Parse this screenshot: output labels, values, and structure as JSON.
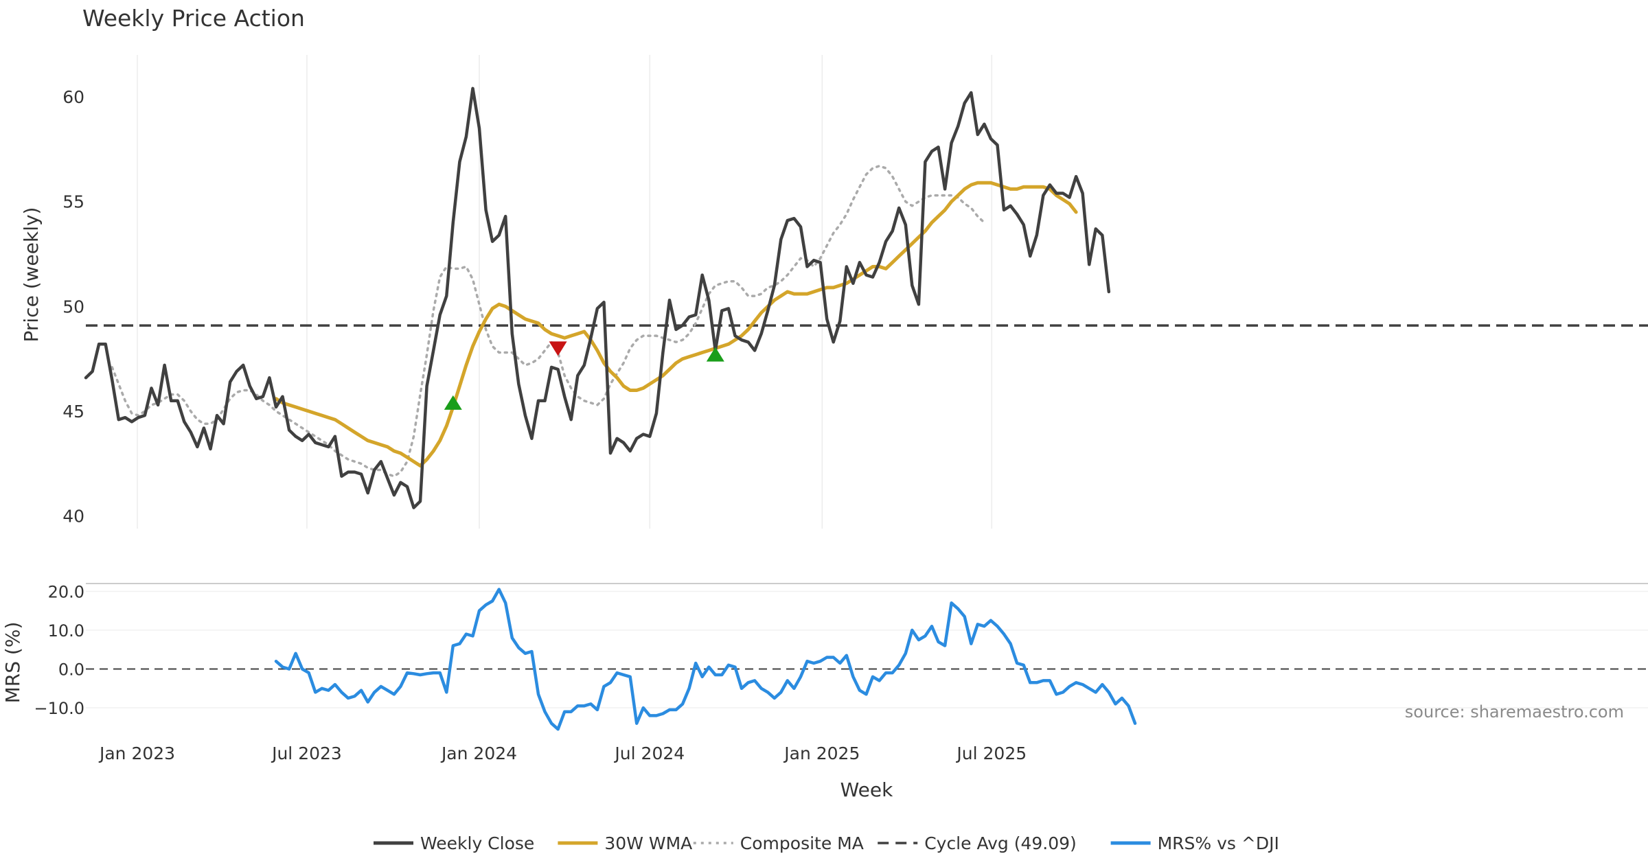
{
  "chart_data": [
    {
      "type": "line",
      "title": "Weekly Price Action",
      "xlabel": "",
      "ylabel": "Price (weekly)",
      "ylim": [
        39.4,
        62
      ],
      "yticks": [
        40,
        45,
        50,
        55,
        60
      ],
      "x_start": "2022-11-07",
      "x_step_days": 7,
      "xticks": [
        {
          "date": "2023-01-01",
          "label": "Jan 2023"
        },
        {
          "date": "2023-07-01",
          "label": "Jul 2023"
        },
        {
          "date": "2024-01-01",
          "label": "Jan 2024"
        },
        {
          "date": "2024-07-01",
          "label": "Jul 2024"
        },
        {
          "date": "2025-01-01",
          "label": "Jan 2025"
        },
        {
          "date": "2025-07-01",
          "label": "Jul 2025"
        }
      ],
      "cycle_avg": 49.09,
      "series": [
        {
          "name": "Weekly Close",
          "color": "#404040",
          "style": "solid",
          "start_index": 0,
          "values": [
            46.6,
            46.9,
            48.2,
            48.2,
            46.5,
            44.6,
            44.7,
            44.5,
            44.7,
            44.8,
            46.1,
            45.3,
            47.2,
            45.5,
            45.5,
            44.5,
            44.0,
            43.3,
            44.2,
            43.2,
            44.8,
            44.4,
            46.4,
            46.9,
            47.2,
            46.2,
            45.6,
            45.7,
            46.6,
            45.2,
            45.7,
            44.1,
            43.8,
            43.6,
            43.9,
            43.5,
            43.4,
            43.3,
            43.8,
            41.9,
            42.1,
            42.1,
            42.0,
            41.1,
            42.2,
            42.6,
            41.8,
            41.0,
            41.6,
            41.4,
            40.4,
            40.7,
            46.2,
            47.9,
            49.6,
            50.5,
            54.0,
            56.9,
            58.1,
            60.4,
            58.5,
            54.6,
            53.1,
            53.4,
            54.3,
            48.7,
            46.3,
            44.8,
            43.7,
            45.5,
            45.5,
            47.1,
            47.0,
            45.7,
            44.6,
            46.7,
            47.2,
            48.5,
            49.9,
            50.2,
            43.0,
            43.7,
            43.5,
            43.1,
            43.7,
            43.9,
            43.8,
            44.9,
            47.8,
            50.3,
            48.9,
            49.1,
            49.5,
            49.6,
            51.5,
            50.3,
            47.9,
            49.8,
            49.9,
            48.6,
            48.4,
            48.3,
            47.9,
            48.7,
            49.8,
            51.0,
            53.2,
            54.1,
            54.2,
            53.8,
            51.9,
            52.2,
            52.1,
            49.4,
            48.3,
            49.3,
            51.9,
            51.1,
            52.1,
            51.5,
            51.4,
            52.1,
            53.1,
            53.6,
            54.7,
            53.9,
            51.0,
            50.1,
            56.9,
            57.4,
            57.6,
            55.6,
            57.8,
            58.6,
            59.7,
            60.2,
            58.2,
            58.7,
            58.0,
            57.7,
            54.6,
            54.8,
            54.4,
            53.9,
            52.4,
            53.4,
            55.3,
            55.8,
            55.4,
            55.4,
            55.2,
            56.2,
            55.4,
            52.0,
            53.7,
            53.4,
            50.7
          ]
        },
        {
          "name": "30W WMA",
          "color": "#d4a52a",
          "style": "solid",
          "start_index": 29,
          "values": [
            45.6,
            45.4,
            45.3,
            45.2,
            45.1,
            45.0,
            44.9,
            44.8,
            44.7,
            44.6,
            44.4,
            44.2,
            44.0,
            43.8,
            43.6,
            43.5,
            43.4,
            43.3,
            43.1,
            43.0,
            42.8,
            42.6,
            42.4,
            42.7,
            43.1,
            43.6,
            44.3,
            45.2,
            46.2,
            47.2,
            48.1,
            48.8,
            49.4,
            49.9,
            50.1,
            50.0,
            49.8,
            49.6,
            49.4,
            49.3,
            49.2,
            48.9,
            48.7,
            48.6,
            48.5,
            48.6,
            48.7,
            48.8,
            48.4,
            47.9,
            47.3,
            46.9,
            46.6,
            46.2,
            46.0,
            46.0,
            46.1,
            46.3,
            46.5,
            46.7,
            47.0,
            47.3,
            47.5,
            47.6,
            47.7,
            47.8,
            47.9,
            48.0,
            48.1,
            48.2,
            48.4,
            48.6,
            48.9,
            49.3,
            49.7,
            50.0,
            50.3,
            50.5,
            50.7,
            50.6,
            50.6,
            50.6,
            50.7,
            50.8,
            50.9,
            50.9,
            51.0,
            51.1,
            51.3,
            51.5,
            51.7,
            51.9,
            51.9,
            51.8,
            52.1,
            52.4,
            52.7,
            53.0,
            53.3,
            53.6,
            54.0,
            54.3,
            54.6,
            55.0,
            55.3,
            55.6,
            55.8,
            55.9,
            55.9,
            55.9,
            55.8,
            55.7,
            55.6,
            55.6,
            55.7,
            55.7,
            55.7,
            55.7,
            55.6,
            55.3,
            55.1,
            54.9,
            54.5
          ]
        },
        {
          "name": "Composite MA",
          "color": "#aaaaaa",
          "style": "dotted",
          "start_index": 4,
          "values": [
            47.1,
            46.3,
            45.5,
            44.9,
            44.8,
            45.0,
            45.3,
            45.4,
            45.6,
            45.8,
            45.8,
            45.5,
            45.0,
            44.6,
            44.4,
            44.4,
            44.6,
            45.1,
            45.6,
            45.9,
            46.0,
            46.0,
            45.8,
            45.5,
            45.3,
            45.0,
            44.8,
            44.6,
            44.4,
            44.2,
            44.0,
            43.8,
            43.6,
            43.4,
            43.1,
            42.9,
            42.7,
            42.6,
            42.5,
            42.3,
            42.2,
            42.2,
            42.0,
            41.9,
            42.1,
            42.6,
            43.8,
            45.8,
            47.7,
            49.8,
            51.4,
            51.9,
            51.8,
            51.8,
            51.9,
            51.3,
            50.1,
            48.9,
            48.1,
            47.8,
            47.8,
            47.8,
            47.5,
            47.2,
            47.3,
            47.5,
            47.9,
            48.3,
            47.8,
            46.7,
            46.1,
            45.7,
            45.5,
            45.4,
            45.3,
            45.6,
            46.3,
            46.8,
            47.3,
            48.0,
            48.4,
            48.6,
            48.6,
            48.6,
            48.5,
            48.4,
            48.3,
            48.4,
            48.7,
            49.2,
            49.9,
            50.6,
            51.0,
            51.1,
            51.2,
            51.2,
            50.9,
            50.5,
            50.5,
            50.6,
            50.9,
            51.0,
            51.2,
            51.5,
            51.9,
            52.3,
            52.2,
            51.9,
            52.3,
            52.9,
            53.5,
            53.9,
            54.4,
            55.1,
            55.7,
            56.3,
            56.6,
            56.7,
            56.6,
            56.2,
            55.6,
            55.0,
            54.8,
            55.0,
            55.2,
            55.3,
            55.3,
            55.3,
            55.3,
            55.2,
            54.9,
            54.7,
            54.3,
            54.0
          ]
        }
      ],
      "markers": [
        {
          "type": "buy",
          "color": "#1a9e1a",
          "index": 56,
          "value": 45.4
        },
        {
          "type": "sell",
          "color": "#c81414",
          "index": 72,
          "value": 48.0
        },
        {
          "type": "buy",
          "color": "#1a9e1a",
          "index": 96,
          "value": 47.7
        }
      ]
    },
    {
      "type": "line",
      "title": "",
      "xlabel": "Week",
      "ylabel": "MRS (%)",
      "ylim": [
        -16,
        22
      ],
      "yticks": [
        20,
        10,
        0,
        -10
      ],
      "ytick_labels": [
        "20.0",
        "10.0",
        "0.0",
        "−10.0"
      ],
      "series": [
        {
          "name": "MRS% vs ^DJI",
          "color": "#2b8ce0",
          "style": "solid",
          "start_index": 29,
          "values": [
            2.0,
            0.5,
            0.0,
            4.0,
            0.0,
            -1.0,
            -6.0,
            -5.0,
            -5.5,
            -4.0,
            -6.0,
            -7.5,
            -7.0,
            -5.5,
            -8.5,
            -6.0,
            -4.5,
            -5.5,
            -6.5,
            -4.5,
            -1.0,
            -1.2,
            -1.5,
            -1.2,
            -1.0,
            -1.0,
            -6.0,
            6.0,
            6.5,
            9.0,
            8.5,
            15.0,
            16.5,
            17.5,
            20.5,
            17.0,
            8.0,
            5.5,
            4.0,
            4.5,
            -6.5,
            -11.0,
            -14.0,
            -15.5,
            -11.0,
            -11.0,
            -9.5,
            -9.5,
            -9.0,
            -10.5,
            -4.5,
            -3.5,
            -1.0,
            -1.5,
            -2.0,
            -14.0,
            -10.0,
            -12.0,
            -12.0,
            -11.5,
            -10.5,
            -10.5,
            -9.0,
            -5.0,
            1.5,
            -2.0,
            0.5,
            -1.5,
            -1.5,
            1.0,
            0.5,
            -5.0,
            -3.5,
            -3.0,
            -5.0,
            -6.0,
            -7.5,
            -6.0,
            -3.0,
            -5.0,
            -2.0,
            2.0,
            1.5,
            2.0,
            3.0,
            3.0,
            1.5,
            3.5,
            -2.0,
            -5.5,
            -6.5,
            -2.0,
            -3.0,
            -1.0,
            -1.0,
            1.0,
            4.0,
            10.0,
            7.5,
            8.5,
            11.0,
            7.0,
            6.0,
            17.0,
            15.5,
            13.5,
            6.5,
            11.5,
            11.0,
            12.5,
            11.0,
            9.0,
            6.5,
            1.5,
            1.0,
            -3.5,
            -3.5,
            -3.0,
            -3.0,
            -6.5,
            -6.0,
            -4.5,
            -3.5,
            -4.0,
            -5.0,
            -6.0,
            -4.0,
            -6.0,
            -9.0,
            -7.5,
            -9.5,
            -14.0
          ]
        }
      ],
      "zero_line": 0
    }
  ],
  "annotation": "source: sharemaestro.com",
  "legend": [
    {
      "label": "Weekly Close",
      "color": "#404040",
      "style": "solid"
    },
    {
      "label": "30W WMA",
      "color": "#d4a52a",
      "style": "solid"
    },
    {
      "label": "Composite MA",
      "color": "#aaaaaa",
      "style": "dotted"
    },
    {
      "label": "Cycle Avg (49.09)",
      "color": "#404040",
      "style": "dashed"
    },
    {
      "label": "MRS% vs ^DJI",
      "color": "#2b8ce0",
      "style": "solid"
    }
  ]
}
